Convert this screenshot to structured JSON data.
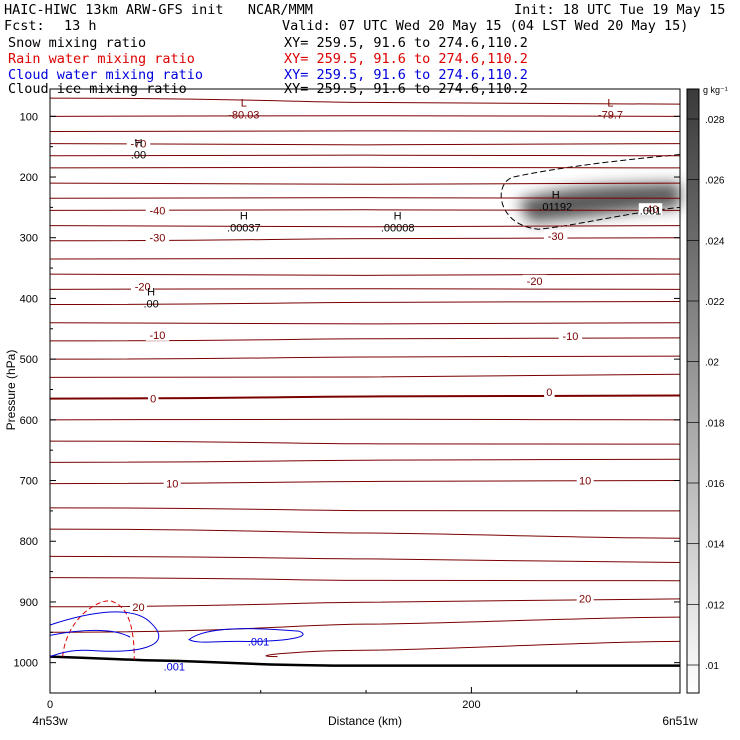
{
  "header": {
    "title": "HAIC-HIWC 13km ARW-GFS init   NCAR/MMM",
    "init": "Init: 18 UTC Tue 19 May 15",
    "fcst_label": "Fcst:",
    "fcst_value": "13 h",
    "valid": "Valid: 07 UTC Wed 20 May 15 (04 LST Wed 20 May 15)",
    "fields": [
      {
        "name": "Snow mixing ratio",
        "xy": "XY= 259.5, 91.6 to 274.6,110.2",
        "color": "#000000"
      },
      {
        "name": "Rain water mixing ratio",
        "xy": "XY= 259.5, 91.6 to 274.6,110.2",
        "color": "#dd0000"
      },
      {
        "name": "Cloud water mixing ratio",
        "xy": "XY= 259.5, 91.6 to 274.6,110.2",
        "color": "#0000dd"
      },
      {
        "name": "Cloud ice mixing ratio",
        "xy": "XY= 259.5, 91.6 to 274.6,110.2",
        "color": "#000000"
      }
    ]
  },
  "chart_data": {
    "type": "cross-section contour",
    "xlabel": "Distance (km)",
    "ylabel": "Pressure (hPa)",
    "x_ticks": [
      0,
      200
    ],
    "y_ticks": [
      100,
      200,
      300,
      400,
      500,
      600,
      700,
      800,
      900,
      1000
    ],
    "xlim": [
      0,
      299
    ],
    "ylim": [
      1050,
      55
    ],
    "x_start_label": "4n53w",
    "x_end_label": "6n51w",
    "colorbar": {
      "unit": "g kg⁻¹",
      "ticks": [
        ".01",
        ".012",
        ".014",
        ".016",
        ".018",
        ".02",
        ".022",
        ".024",
        ".026",
        ".028"
      ]
    },
    "temperature_labels": [
      {
        "text": "-70",
        "x": 42,
        "p": 145
      },
      {
        "text": "-40",
        "x": 51,
        "p": 255
      },
      {
        "text": "-30",
        "x": 51,
        "p": 300
      },
      {
        "text": "-20",
        "x": 44,
        "p": 380
      },
      {
        "text": "-10",
        "x": 51,
        "p": 460
      },
      {
        "text": "0",
        "x": 49,
        "p": 565
      },
      {
        "text": "10",
        "x": 58,
        "p": 705
      },
      {
        "text": "20",
        "x": 42,
        "p": 908
      },
      {
        "text": "-40",
        "x": 285,
        "p": 253
      },
      {
        "text": "-30",
        "x": 240,
        "p": 297
      },
      {
        "text": "-20",
        "x": 230,
        "p": 371
      },
      {
        "text": "-10",
        "x": 247,
        "p": 462
      },
      {
        "text": "0",
        "x": 237,
        "p": 554
      },
      {
        "text": "10",
        "x": 254,
        "p": 700
      },
      {
        "text": "20",
        "x": 254,
        "p": 894
      }
    ],
    "extrema_labels": [
      {
        "mark": "L",
        "value": "-80.03",
        "x": 92,
        "p": 84,
        "color": "#7a0000"
      },
      {
        "mark": "L",
        "value": "-79.7",
        "x": 266,
        "p": 84,
        "color": "#7a0000"
      },
      {
        "mark": "H",
        "value": ".00",
        "x": 42,
        "p": 150,
        "color": "#000000"
      },
      {
        "mark": "H",
        "value": ".00037",
        "x": 92,
        "p": 270,
        "color": "#000000"
      },
      {
        "mark": "H",
        "value": ".00008",
        "x": 165,
        "p": 270,
        "color": "#000000"
      },
      {
        "mark": "H",
        "value": ".01192",
        "x": 240,
        "p": 235,
        "color": "#000000"
      },
      {
        "mark": "H",
        "value": ".00",
        "x": 48,
        "p": 395,
        "color": "#000000"
      }
    ],
    "ice_contour_labels": [
      {
        "text": ".001",
        "x": 285,
        "p": 255
      }
    ],
    "cloud_water_labels": [
      {
        "text": ".001",
        "x": 99,
        "p": 965
      },
      {
        "text": ".001",
        "x": 59,
        "p": 1006
      }
    ],
    "isotherm_pressures_left": [
      70,
      100,
      125,
      145,
      165,
      185,
      210,
      235,
      255,
      280,
      305,
      335,
      360,
      385,
      410,
      440,
      470,
      500,
      530,
      565,
      600,
      635,
      670,
      705,
      745,
      780,
      825,
      860,
      908,
      950,
      990
    ],
    "isotherm_pressures_right": [
      80,
      100,
      125,
      145,
      165,
      185,
      210,
      235,
      255,
      280,
      300,
      335,
      360,
      385,
      405,
      440,
      465,
      495,
      525,
      560,
      600,
      640,
      665,
      700,
      750,
      795,
      835,
      865,
      895,
      925,
      965
    ],
    "terrain_pressures": [
      990,
      992,
      994,
      996,
      997,
      999,
      1001,
      1003,
      1004,
      1005,
      1005,
      1005,
      1005,
      1005,
      1005,
      1005,
      1005,
      1005,
      1005,
      1005,
      1005
    ]
  }
}
